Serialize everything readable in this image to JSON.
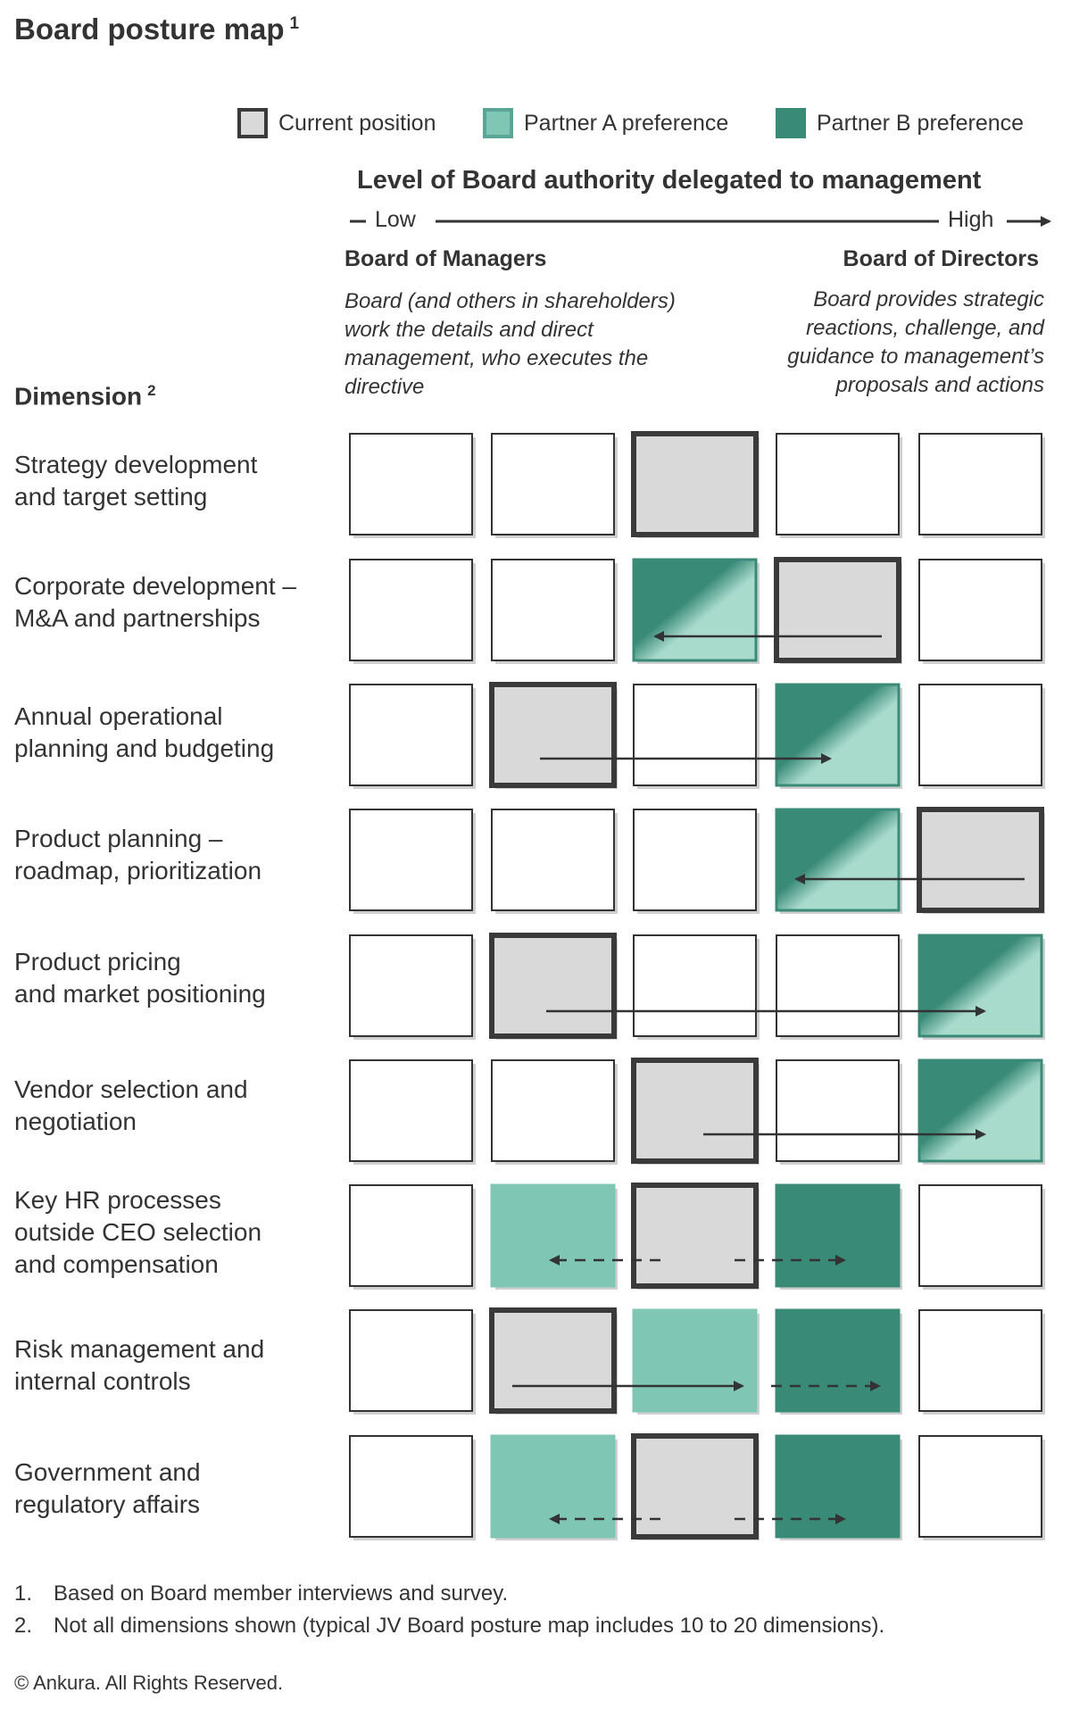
{
  "title": "Board posture map",
  "title_note": "1",
  "legend": [
    {
      "label": "Current position",
      "fill": "#d9d9d9",
      "border": "#3a3a3a"
    },
    {
      "label": "Partner A preference",
      "fill": "#7fc6b5",
      "border": "#5aa595"
    },
    {
      "label": "Partner B preference",
      "fill": "#3a8a78",
      "border": "#3a8a78"
    }
  ],
  "axis": {
    "title": "Level of Board authority delegated to management",
    "low": "Low",
    "high": "High"
  },
  "low_end": {
    "heading": "Board of Managers",
    "description": "Board (and others in shareholders) work the details and direct management, who executes the directive"
  },
  "high_end": {
    "heading": "Board of Directors",
    "description": "Board provides strategic reactions, challenge, and guidance to management’s proposals and actions"
  },
  "dimension_header": "Dimension",
  "dimension_note": "2",
  "colors": {
    "current": "#d9d9d9",
    "partner_a": "#7fc6b5",
    "partner_b": "#3a8a78",
    "shared_light": "#a9dbcd",
    "border": "#3a3a3a",
    "empty_border": "#333333"
  },
  "dimensions": [
    {
      "label": "Strategy development\nand target setting",
      "current": 3,
      "partner_a": 3,
      "partner_b": 3
    },
    {
      "label": "Corporate development –\nM&A  and partnerships",
      "current": 4,
      "partner_a": 3,
      "partner_b": 3
    },
    {
      "label": "Annual operational\nplanning and  budgeting",
      "current": 2,
      "partner_a": 4,
      "partner_b": 4
    },
    {
      "label": "Product planning –\nroadmap,  prioritization",
      "current": 5,
      "partner_a": 4,
      "partner_b": 4
    },
    {
      "label": "Product pricing\nand market positioning",
      "current": 2,
      "partner_a": 5,
      "partner_b": 5
    },
    {
      "label": "Vendor selection  and\nnegotiation",
      "current": 3,
      "partner_a": 5,
      "partner_b": 5
    },
    {
      "label": "Key HR processes\noutside CEO selection\nand compensation",
      "current": 3,
      "partner_a": 2,
      "partner_b": 4
    },
    {
      "label": "Risk management  and\ninternal controls",
      "current": 2,
      "partner_a": 3,
      "partner_b": 4
    },
    {
      "label": "Government and\nregulatory affairs",
      "current": 3,
      "partner_a": 2,
      "partner_b": 4
    }
  ],
  "footnotes": [
    {
      "num": "1.",
      "text": "Based on Board member interviews and survey."
    },
    {
      "num": "2.",
      "text": "Not all dimensions shown (typical JV Board posture map includes 10 to 20  dimensions)."
    }
  ],
  "copyright": "© Ankura. All Rights Reserved."
}
